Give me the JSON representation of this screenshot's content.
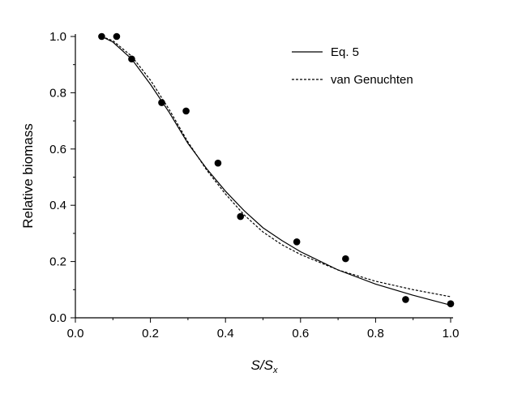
{
  "chart_data": {
    "type": "scatter",
    "title": "",
    "xlabel_main": "S/S",
    "xlabel_sub": "x",
    "ylabel": "Relative biomass",
    "xlim": [
      0.0,
      1.0
    ],
    "ylim": [
      0.0,
      1.0
    ],
    "x_ticks": [
      "0.0",
      "0.2",
      "0.4",
      "0.6",
      "0.8",
      "1.0"
    ],
    "y_ticks": [
      "0.0",
      "0.2",
      "0.4",
      "0.6",
      "0.8",
      "1.0"
    ],
    "grid": false,
    "legend_position": "top-right",
    "points": [
      {
        "x": 0.07,
        "y": 1.0
      },
      {
        "x": 0.11,
        "y": 1.0
      },
      {
        "x": 0.15,
        "y": 0.92
      },
      {
        "x": 0.23,
        "y": 0.765
      },
      {
        "x": 0.295,
        "y": 0.735
      },
      {
        "x": 0.38,
        "y": 0.55
      },
      {
        "x": 0.44,
        "y": 0.36
      },
      {
        "x": 0.59,
        "y": 0.27
      },
      {
        "x": 0.72,
        "y": 0.21
      },
      {
        "x": 0.88,
        "y": 0.065
      },
      {
        "x": 1.0,
        "y": 0.05
      }
    ],
    "series": [
      {
        "name": "Eq. 5",
        "style": "solid",
        "x": [
          0.07,
          0.1,
          0.15,
          0.2,
          0.25,
          0.3,
          0.35,
          0.4,
          0.45,
          0.5,
          0.55,
          0.6,
          0.7,
          0.8,
          0.9,
          1.0
        ],
        "y": [
          1.0,
          0.98,
          0.92,
          0.83,
          0.73,
          0.62,
          0.53,
          0.45,
          0.38,
          0.32,
          0.275,
          0.235,
          0.17,
          0.12,
          0.08,
          0.045
        ]
      },
      {
        "name": "van Genuchten",
        "style": "dashed",
        "x": [
          0.07,
          0.1,
          0.15,
          0.2,
          0.25,
          0.3,
          0.35,
          0.4,
          0.45,
          0.5,
          0.55,
          0.6,
          0.7,
          0.8,
          0.9,
          1.0
        ],
        "y": [
          1.0,
          0.985,
          0.93,
          0.845,
          0.74,
          0.625,
          0.525,
          0.44,
          0.365,
          0.305,
          0.26,
          0.225,
          0.17,
          0.13,
          0.1,
          0.075
        ]
      }
    ]
  }
}
